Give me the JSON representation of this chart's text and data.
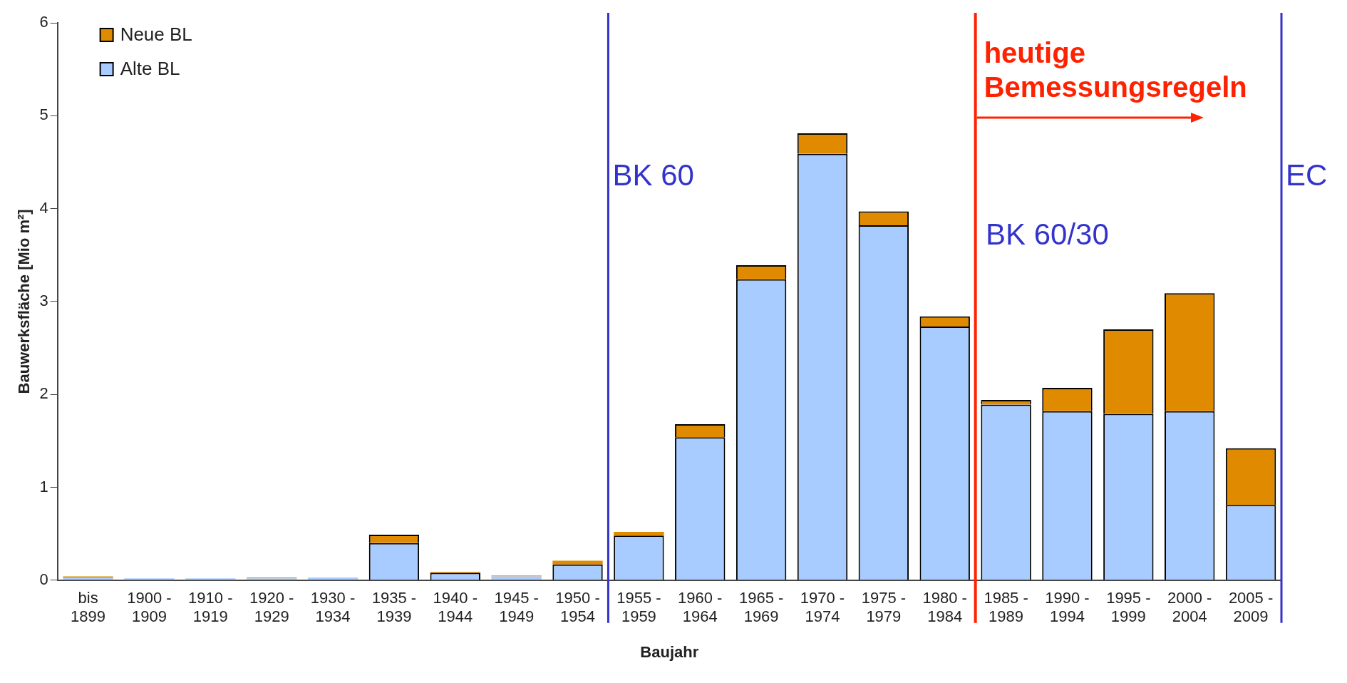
{
  "chart_data": {
    "type": "bar",
    "stacked": true,
    "xlabel": "Baujahr",
    "ylabel": "Bauwerksfläche [Mio m²]",
    "categories": [
      "bis 1899",
      "1900 - 1909",
      "1910 - 1919",
      "1920 - 1929",
      "1930 - 1934",
      "1935 - 1939",
      "1940 - 1944",
      "1945 - 1949",
      "1950 - 1954",
      "1955 - 1959",
      "1960 - 1964",
      "1965 - 1969",
      "1970 - 1974",
      "1975 - 1979",
      "1980 - 1984",
      "1985 - 1989",
      "1990 - 1994",
      "1995 - 1999",
      "2000 - 2004",
      "2005 - 2009"
    ],
    "series": [
      {
        "name": "Alte BL",
        "color": "#a8ccff",
        "values": [
          0.03,
          0.02,
          0.02,
          0.02,
          0.03,
          0.4,
          0.08,
          0.04,
          0.17,
          0.48,
          1.54,
          3.24,
          4.59,
          3.82,
          2.73,
          1.89,
          1.82,
          1.79,
          1.82,
          0.81
        ]
      },
      {
        "name": "Neue BL",
        "color": "#e08a00",
        "values": [
          0.01,
          0,
          0,
          0.01,
          0,
          0.09,
          0.01,
          0.01,
          0.04,
          0.04,
          0.14,
          0.15,
          0.22,
          0.15,
          0.11,
          0.05,
          0.25,
          0.91,
          1.27,
          0.61
        ]
      }
    ],
    "ylim": [
      0,
      6
    ],
    "yticks": [
      0,
      1,
      2,
      3,
      4,
      5,
      6
    ],
    "grid": false,
    "legend": "top left",
    "ref_lines": [
      {
        "axis": "x",
        "value": "1950 - 1954",
        "label": "BK 60",
        "color": "#3333cc"
      },
      {
        "axis": "x",
        "value": "1980 - 1984",
        "label": "heutige Bemessungsregeln",
        "color": "#ff2200"
      },
      {
        "axis": "x",
        "value": "2005 - 2009",
        "label": "EC",
        "color": "#3333cc"
      }
    ],
    "annotations": [
      "BK 60/30"
    ]
  }
}
